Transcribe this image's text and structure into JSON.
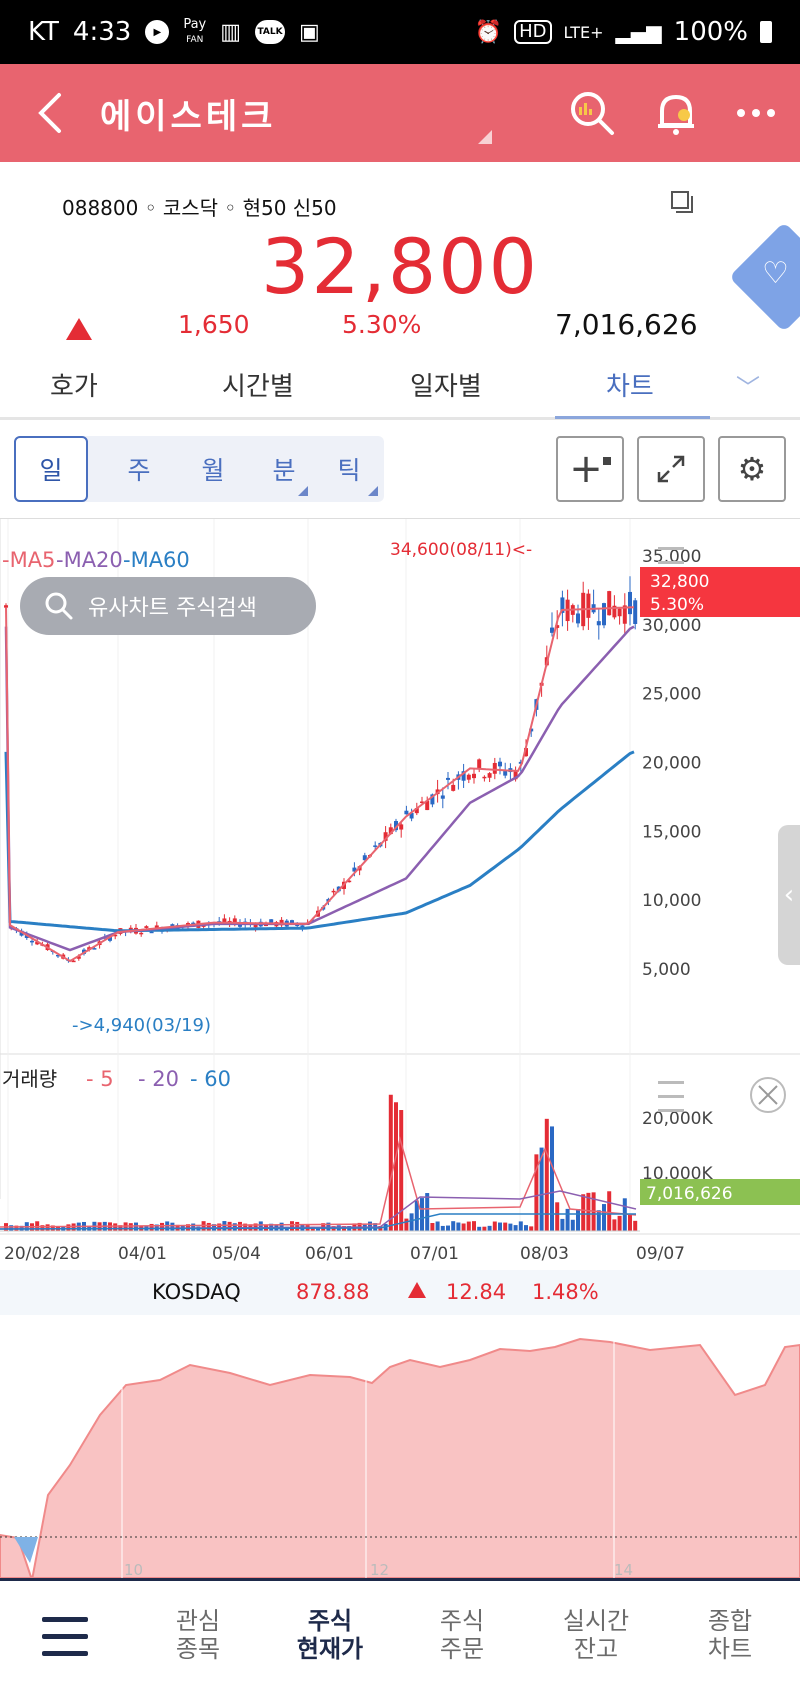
{
  "status_bar": {
    "carrier": "KT",
    "time": "4:33",
    "pay_label": "Pay",
    "fan_label": "FAN",
    "talk_label": "TALK",
    "hd_label": "HD",
    "network": "LTE+",
    "battery": "100%"
  },
  "app_bar": {
    "title": "에이스테크"
  },
  "quote": {
    "code_line": "088800 ◦ 코스닥 ◦ 현50 신50",
    "price": "32,800",
    "change": "1,650",
    "rate": "5.30%",
    "volume": "7,016,626"
  },
  "tabs": [
    {
      "label": "호가"
    },
    {
      "label": "시간별"
    },
    {
      "label": "일자별"
    },
    {
      "label": "차트"
    }
  ],
  "periods": [
    {
      "label": "일"
    },
    {
      "label": "주"
    },
    {
      "label": "월"
    },
    {
      "label": "분"
    },
    {
      "label": "틱"
    }
  ],
  "chart": {
    "ma_legend": [
      "-MA5",
      "-MA20",
      "-MA60"
    ],
    "high_label": "34,600(08/11)<-",
    "low_label": "->4,940(03/19)",
    "search_label": "유사차트 주식검색",
    "price_ticks": [
      "35,000",
      "30,000",
      "25,000",
      "20,000",
      "15,000",
      "10,000",
      "5,000"
    ],
    "current_price": "32,800",
    "current_rate": "5.30%",
    "volume_legend_title": "거래량",
    "volume_legend": [
      "- 5",
      "- 20",
      "- 60"
    ],
    "volume_ticks": [
      "20,000K",
      "10,000K"
    ],
    "current_volume": "7,016,626",
    "date_ticks": [
      "20/02/28",
      "04/01",
      "05/04",
      "06/01",
      "07/01",
      "08/03",
      "09/07"
    ],
    "colors": {
      "up": "#e42c35",
      "down": "#2a68c4",
      "ma5": "#e8646f",
      "ma20": "#8b5fb0",
      "ma60": "#2a7fc4"
    }
  },
  "chart_data": {
    "type": "line",
    "title": "",
    "price_axis": {
      "min": 5000,
      "max": 35000
    },
    "series": [
      {
        "name": "MA5",
        "x": [
          "20/02/28",
          "03/19",
          "04/01",
          "05/04",
          "06/01",
          "07/01",
          "07/15",
          "08/03",
          "08/11",
          "09/07"
        ],
        "values": [
          8200,
          5500,
          7600,
          8300,
          8200,
          16000,
          19500,
          19300,
          31000,
          31200
        ]
      },
      {
        "name": "MA20",
        "x": [
          "20/02/28",
          "03/19",
          "04/01",
          "05/04",
          "06/01",
          "07/01",
          "07/15",
          "08/03",
          "08/11",
          "09/07"
        ],
        "values": [
          8000,
          6300,
          7600,
          8200,
          8200,
          11500,
          17000,
          19000,
          24000,
          29800
        ]
      },
      {
        "name": "MA60",
        "x": [
          "20/02/28",
          "03/19",
          "04/01",
          "05/04",
          "06/01",
          "07/01",
          "07/15",
          "08/03",
          "08/11",
          "09/07"
        ],
        "values": [
          8400,
          8000,
          7700,
          7800,
          7900,
          9000,
          11000,
          13700,
          16500,
          20700
        ]
      }
    ]
  },
  "kosdaq": {
    "label": "KOSDAQ",
    "value": "878.88",
    "change": "12.84",
    "rate": "1.48%",
    "x_ticks": [
      "10",
      "12",
      "14"
    ]
  },
  "bottom_nav": [
    {
      "label": "관심\n종목"
    },
    {
      "label": "주식\n현재가"
    },
    {
      "label": "주식\n주문"
    },
    {
      "label": "실시간\n잔고"
    },
    {
      "label": "종합\n차트"
    }
  ]
}
